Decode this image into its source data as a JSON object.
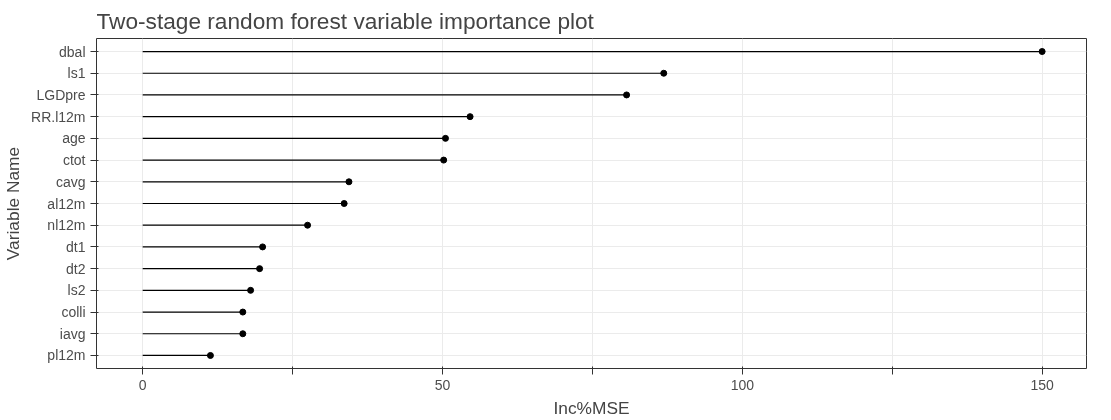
{
  "chart_data": {
    "type": "lollipop",
    "orientation": "horizontal",
    "title": "Two-stage random forest variable importance plot",
    "xlabel": "Inc%MSE",
    "ylabel": "Variable Name",
    "categories": [
      "dbal",
      "ls1",
      "LGDpre",
      "RR.l12m",
      "age",
      "ctot",
      "cavg",
      "al12m",
      "nl12m",
      "dt1",
      "dt2",
      "ls2",
      "colli",
      "iavg",
      "pl12m"
    ],
    "series": [
      {
        "color": "#000000",
        "values": [
          150,
          86.9,
          80.7,
          54.6,
          50.5,
          50.2,
          34.4,
          33.6,
          27.5,
          20,
          19.5,
          18,
          16.7,
          16.7,
          11.3
        ]
      }
    ],
    "xlim": [
      -7.7,
      157.4
    ],
    "xticks": [
      0,
      {
        "value": 25,
        "label": null
      },
      50,
      {
        "value": 75,
        "label": null
      },
      100,
      {
        "value": 125,
        "label": null
      },
      150
    ],
    "grid": true,
    "marker": "circle"
  }
}
